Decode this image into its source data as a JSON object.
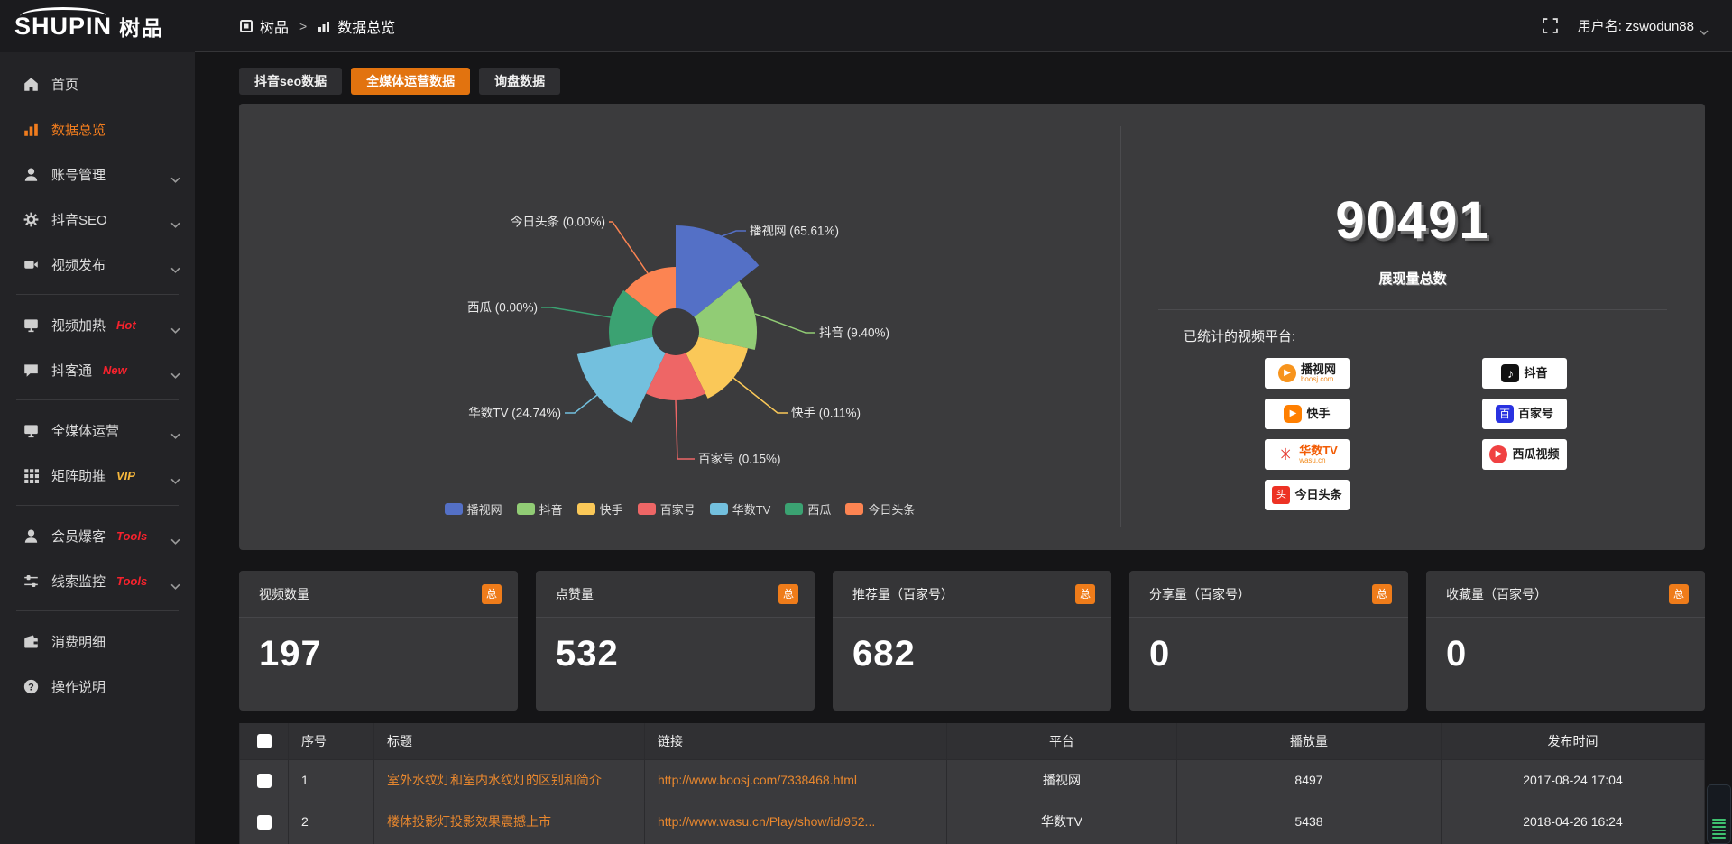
{
  "logo": {
    "brand": "SHUPIN",
    "brand_cn": "树品"
  },
  "topbar": {
    "breadcrumb": [
      {
        "label": "树品"
      },
      {
        "label": "数据总览"
      }
    ],
    "separator": ">",
    "username": "用户名: zswodun88"
  },
  "sidebar": {
    "items": [
      {
        "label": "首页",
        "icon": "home"
      },
      {
        "label": "数据总览",
        "icon": "chart",
        "active": true
      },
      {
        "label": "账号管理",
        "icon": "user",
        "chevron": true
      },
      {
        "label": "抖音SEO",
        "icon": "gear",
        "chevron": true
      },
      {
        "label": "视频发布",
        "icon": "video",
        "chevron": true
      },
      {
        "divider": true
      },
      {
        "label": "视频加热",
        "icon": "monitor",
        "badge": "Hot",
        "badge_color": "#f5222d",
        "chevron": true
      },
      {
        "label": "抖客通",
        "icon": "chat",
        "badge": "New",
        "badge_color": "#f5222d",
        "chevron": true
      },
      {
        "divider": true
      },
      {
        "label": "全媒体运营",
        "icon": "monitor",
        "chevron": true
      },
      {
        "label": "矩阵助推",
        "icon": "grid",
        "badge": "VIP",
        "badge_color": "#f6b73c",
        "chevron": true
      },
      {
        "divider": true
      },
      {
        "label": "会员爆客",
        "icon": "user",
        "badge": "Tools",
        "badge_color": "#f5222d",
        "chevron": true
      },
      {
        "label": "线索监控",
        "icon": "sliders",
        "badge": "Tools",
        "badge_color": "#f5222d",
        "chevron": true
      },
      {
        "divider": true
      },
      {
        "label": "消费明细",
        "icon": "wallet"
      },
      {
        "label": "操作说明",
        "icon": "question"
      }
    ]
  },
  "tabs": [
    {
      "label": "抖音seo数据",
      "active": false
    },
    {
      "label": "全媒体运营数据",
      "active": true
    },
    {
      "label": "询盘数据",
      "active": false
    }
  ],
  "chart_data": {
    "type": "pie",
    "variant": "nightingale-rose",
    "slices": [
      {
        "name": "播视网",
        "pct": 65.61,
        "color": "#5470c6"
      },
      {
        "name": "抖音",
        "pct": 9.4,
        "color": "#91cc75"
      },
      {
        "name": "快手",
        "pct": 0.11,
        "color": "#fac858"
      },
      {
        "name": "百家号",
        "pct": 0.15,
        "color": "#ee6666"
      },
      {
        "name": "华数TV",
        "pct": 24.74,
        "color": "#73c0de"
      },
      {
        "name": "西瓜",
        "pct": 0.0,
        "color": "#3ba272"
      },
      {
        "name": "今日头条",
        "pct": 0.0,
        "color": "#fc8452"
      }
    ],
    "label_format": "{name} ({pct}%)",
    "legend": [
      "播视网",
      "抖音",
      "快手",
      "百家号",
      "华数TV",
      "西瓜",
      "今日头条"
    ],
    "layout": {
      "start_angle_deg": 0,
      "equal_angles": true,
      "inner_radius": 26,
      "outer_radii": [
        118,
        90,
        82,
        76,
        112,
        74,
        72
      ],
      "legend_position": "bottom"
    }
  },
  "summary": {
    "total": "90491",
    "total_label": "展现量总数",
    "platforms_label": "已统计的视频平台:",
    "platforms": [
      {
        "name": "播视网",
        "sub": "boosj.com",
        "logo": "boosj"
      },
      {
        "name": "抖音",
        "logo": "douyin"
      },
      {
        "name": "快手",
        "logo": "kuaishou"
      },
      {
        "name": "百家号",
        "logo": "baijiahao"
      },
      {
        "name": "华数TV",
        "sub": "wasu.cn",
        "logo": "wasu"
      },
      {
        "name": "西瓜视频",
        "logo": "xigua"
      },
      {
        "name": "今日头条",
        "logo": "toutiao"
      }
    ]
  },
  "stat_cards": [
    {
      "title": "视频数量",
      "badge": "总",
      "value": "197"
    },
    {
      "title": "点赞量",
      "badge": "总",
      "value": "532"
    },
    {
      "title": "推荐量（百家号）",
      "badge": "总",
      "value": "682"
    },
    {
      "title": "分享量（百家号）",
      "badge": "总",
      "value": "0"
    },
    {
      "title": "收藏量（百家号）",
      "badge": "总",
      "value": "0"
    }
  ],
  "table": {
    "headers": [
      "序号",
      "标题",
      "链接",
      "平台",
      "播放量",
      "发布时间"
    ],
    "rows": [
      {
        "no": "1",
        "title": "室外水纹灯和室内水纹灯的区别和简介",
        "link": "http://www.boosj.com/7338468.html",
        "platform": "播视网",
        "plays": "8497",
        "time": "2017-08-24 17:04"
      },
      {
        "no": "2",
        "title": "楼体投影灯投影效果震撼上市",
        "link": "http://www.wasu.cn/Play/show/id/952...",
        "platform": "华数TV",
        "plays": "5438",
        "time": "2018-04-26 16:24"
      }
    ]
  }
}
